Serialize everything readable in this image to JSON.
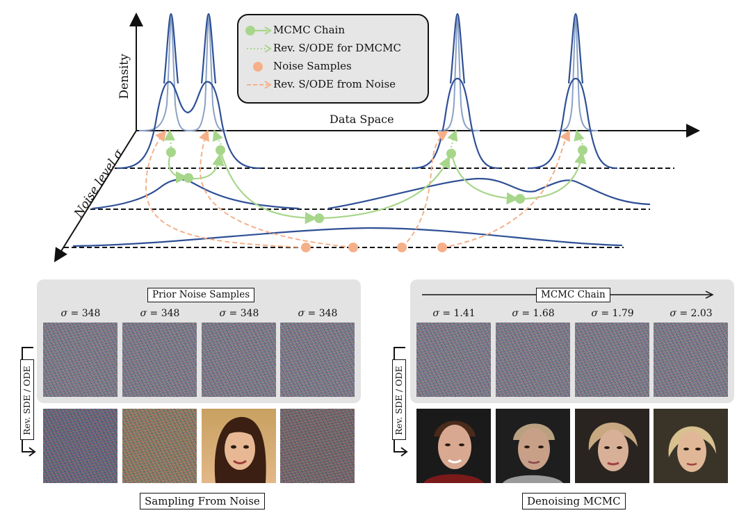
{
  "top_diagram": {
    "y_axis_label": "Density",
    "x_axis_label": "Data Space",
    "z_axis_label": "Noise level σ",
    "colors": {
      "blue": "#2e4f95",
      "light_blue": "#8aa1c6",
      "green": "#a7d68b",
      "orange": "#f5b089"
    }
  },
  "legend": {
    "items": [
      {
        "label": "MCMC Chain",
        "icon": "green-dot-solid-arrow-icon"
      },
      {
        "label": "Rev. S/ODE for DMCMC",
        "icon": "green-dotted-arrow-icon"
      },
      {
        "label": "Noise Samples",
        "icon": "orange-dot-icon"
      },
      {
        "label": "Rev. S/ODE from Noise",
        "icon": "orange-dashed-arrow-icon"
      }
    ]
  },
  "left_panel": {
    "header": "Prior Noise Samples",
    "sigma_prefix": "σ = ",
    "sigmas": [
      "348",
      "348",
      "348",
      "348"
    ],
    "side_label": "Rev. SDE / ODE",
    "caption": "Sampling From Noise"
  },
  "right_panel": {
    "header": "MCMC Chain",
    "sigma_prefix": "σ = ",
    "sigmas": [
      "1.41",
      "1.68",
      "1.79",
      "2.03"
    ],
    "side_label": "Rev. SDE / ODE",
    "caption": "Denoising MCMC"
  }
}
